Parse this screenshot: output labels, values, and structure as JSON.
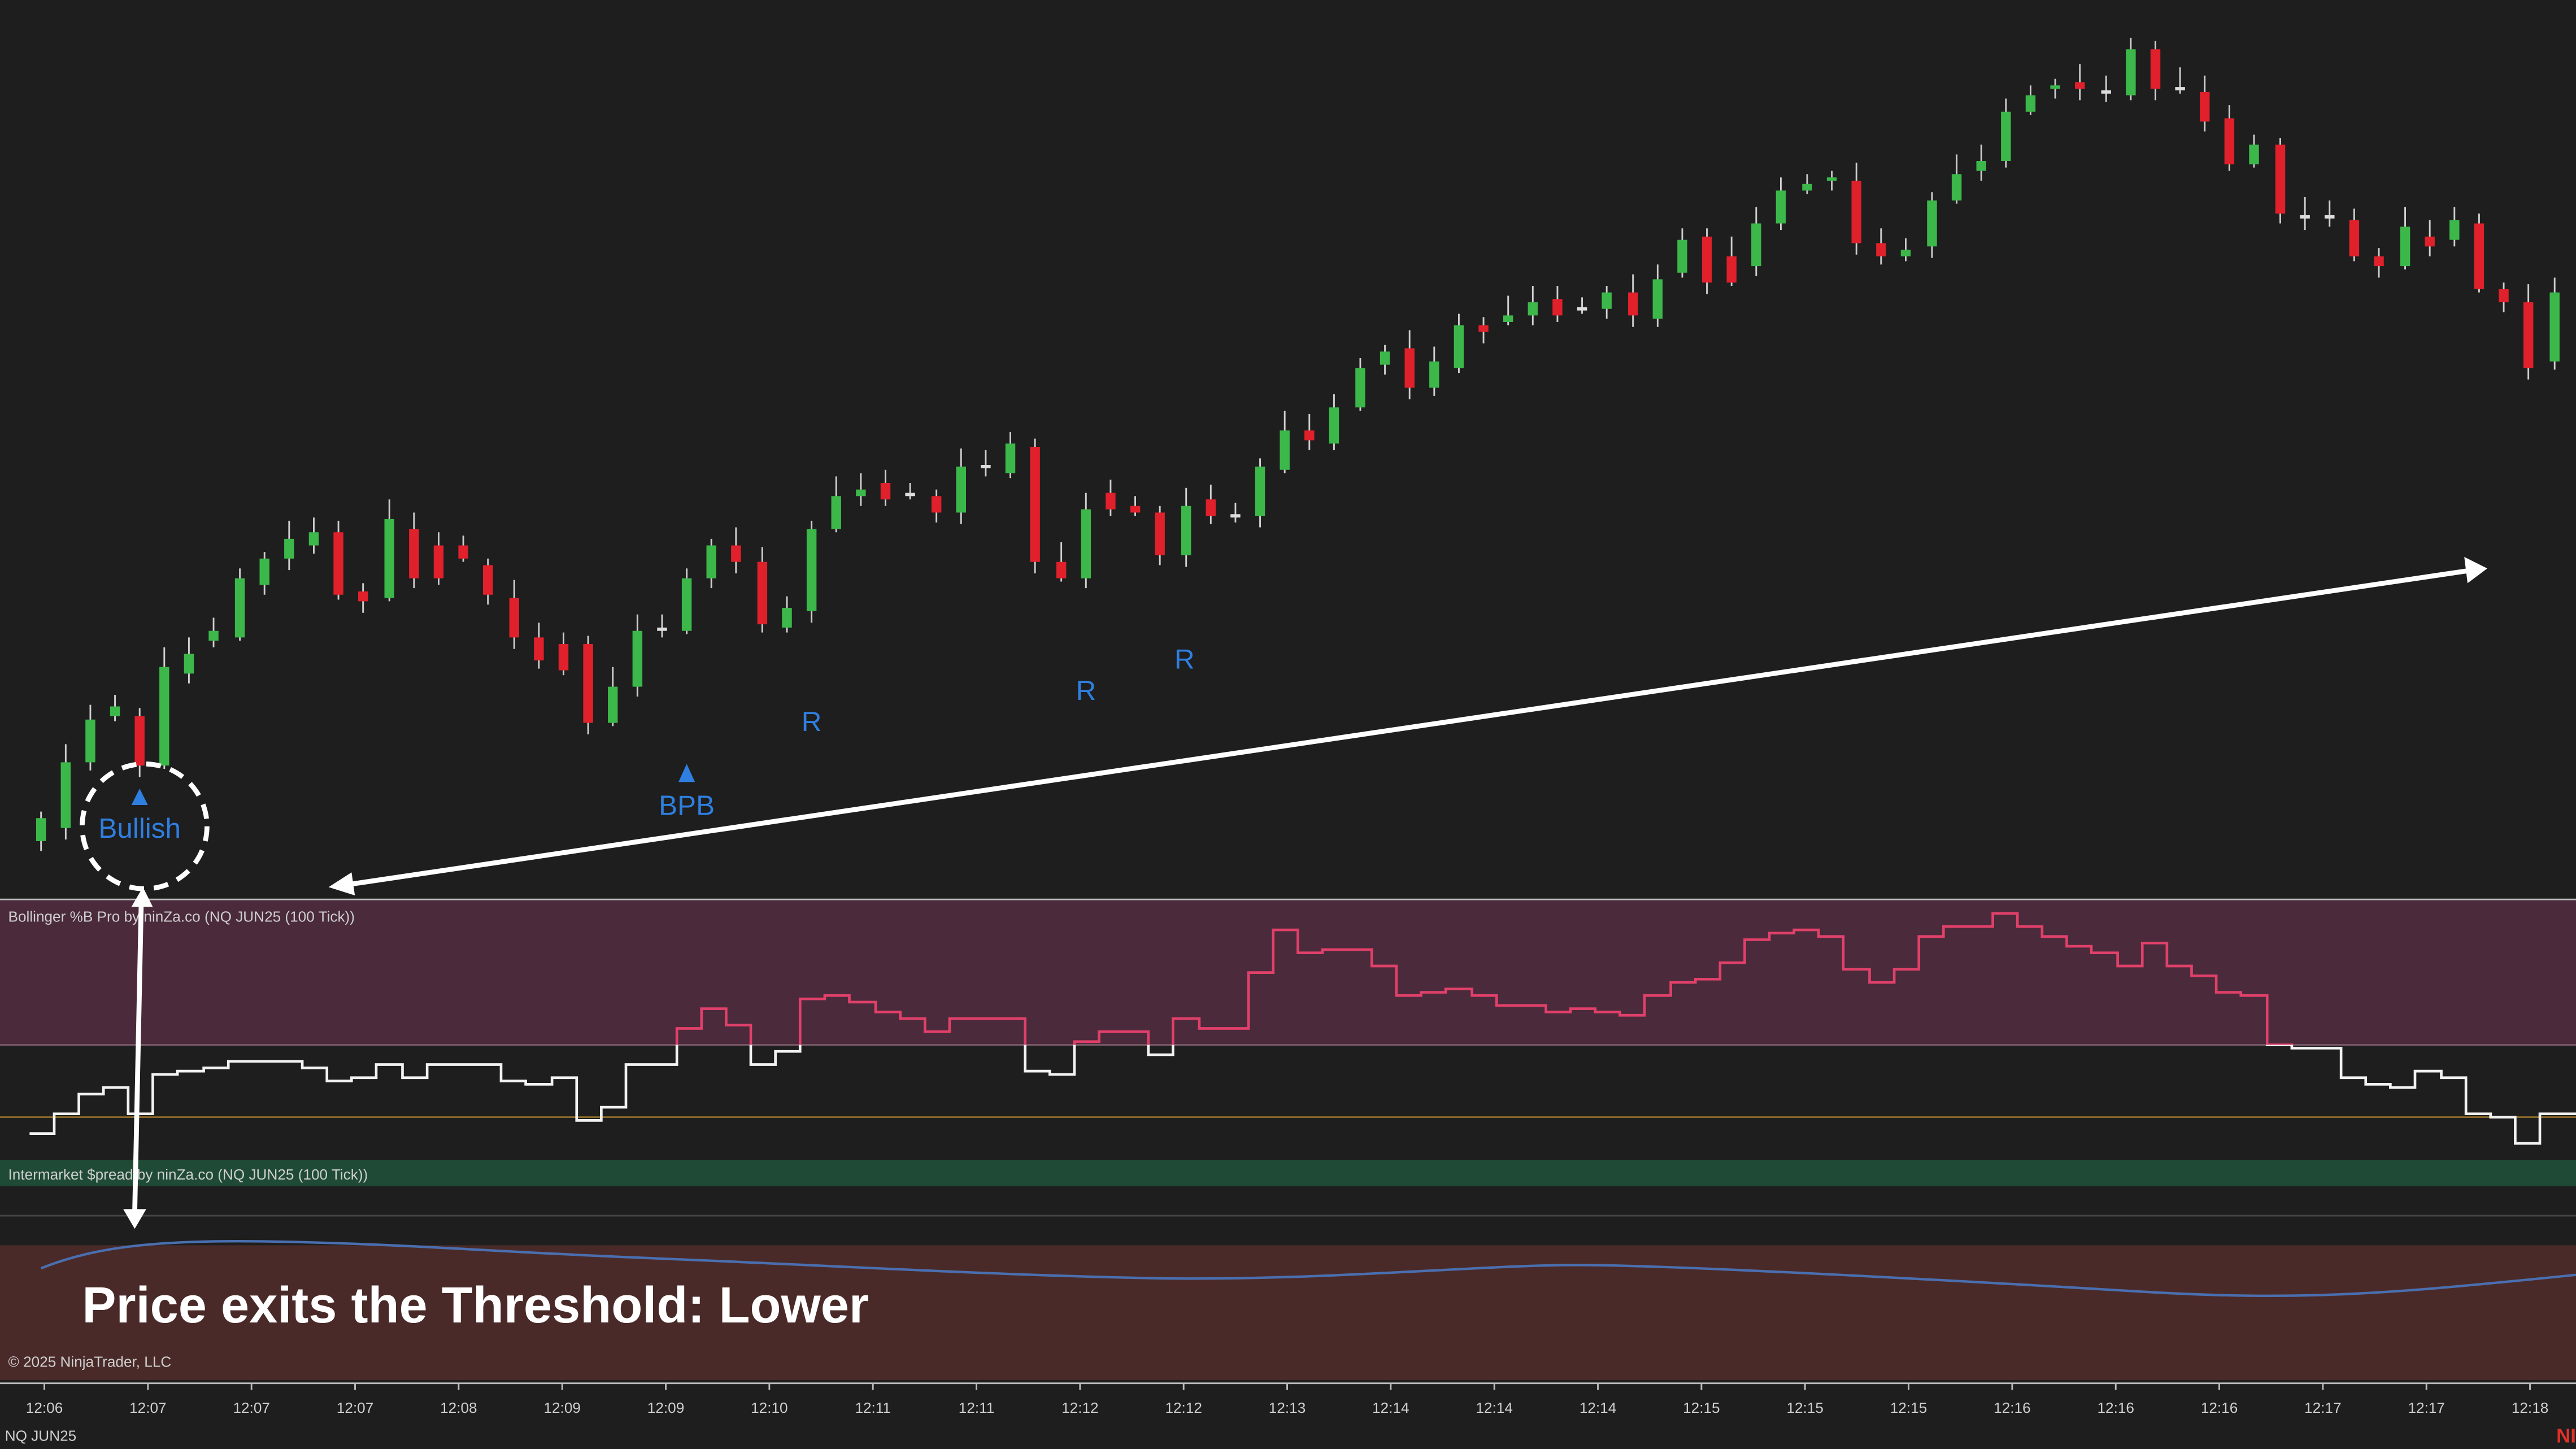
{
  "annotations": {
    "signal": "Bullish",
    "pullback": "BPB",
    "retests": [
      "R",
      "R",
      "R"
    ],
    "caption": "Price exits the Threshold: Lower"
  },
  "panels": {
    "bollinger_title": "Bollinger %B Pro by ninZa.co (NQ JUN25 (100 Tick))",
    "spread_title": "Intermarket $pread by ninZa.co (NQ JUN25 (100 Tick))"
  },
  "footer": {
    "copyright": "© 2025 NinjaTrader, LLC",
    "instrument": "NQ JUN25",
    "logo": "NI"
  },
  "time_axis": [
    "12:06",
    "12:07",
    "12:07",
    "12:07",
    "12:08",
    "12:09",
    "12:09",
    "12:10",
    "12:11",
    "12:11",
    "12:12",
    "12:12",
    "12:13",
    "12:14",
    "12:14",
    "12:14",
    "12:15",
    "12:15",
    "12:15",
    "12:16",
    "12:16",
    "12:16",
    "12:17",
    "12:17",
    "12:18"
  ]
}
